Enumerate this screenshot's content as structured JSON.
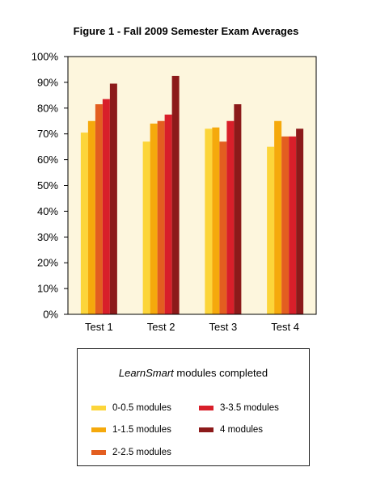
{
  "chart_data": {
    "type": "bar",
    "title": "Figure 1 - Fall 2009 Semester Exam Averages",
    "xlabel": "",
    "ylabel": "",
    "ylim": [
      0,
      100
    ],
    "y_tick_labels": [
      "0%",
      "10%",
      "20%",
      "30%",
      "40%",
      "50%",
      "60%",
      "70%",
      "80%",
      "90%",
      "100%"
    ],
    "categories": [
      "Test 1",
      "Test 2",
      "Test 3",
      "Test 4"
    ],
    "series": [
      {
        "name": "0-0.5 modules",
        "color": "#fcd53a",
        "values": [
          70.5,
          67,
          72,
          65
        ]
      },
      {
        "name": "1-1.5 modules",
        "color": "#f5a90c",
        "values": [
          75,
          74,
          72.5,
          75
        ]
      },
      {
        "name": "2-2.5 modules",
        "color": "#e35e20",
        "values": [
          81.5,
          75,
          67,
          69
        ]
      },
      {
        "name": "3-3.5 modules",
        "color": "#d81f2a",
        "values": [
          83.5,
          77.5,
          75,
          69
        ]
      },
      {
        "name": "4 modules",
        "color": "#8c1a1a",
        "values": [
          89.5,
          92.5,
          81.5,
          72
        ]
      }
    ],
    "plot_background": "#fdf6dd",
    "grid": false,
    "legend_position": "bottom"
  },
  "legend": {
    "title_italic": "LearnSmart",
    "title_rest": " modules completed"
  }
}
